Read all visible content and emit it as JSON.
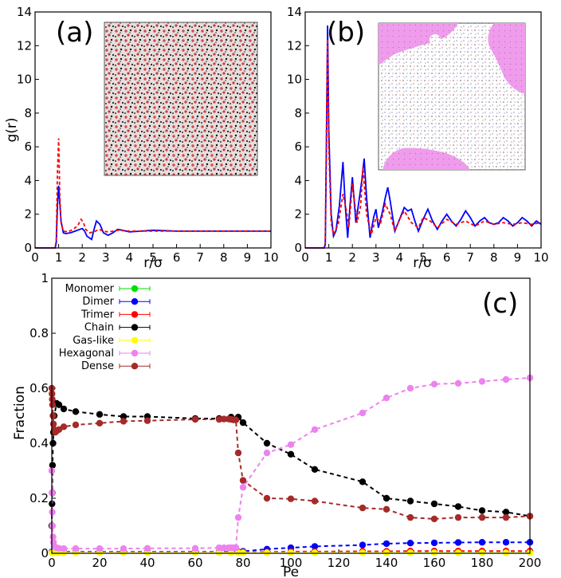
{
  "chart_data": [
    {
      "type": "line",
      "panel_label": "(a)",
      "xlabel": "r/σ",
      "ylabel": "g(r)",
      "xlim": [
        0,
        10
      ],
      "ylim": [
        0,
        14
      ],
      "xticks": [
        0,
        1,
        2,
        3,
        4,
        5,
        6,
        7,
        8,
        9,
        10
      ],
      "yticks": [
        0,
        2,
        4,
        6,
        8,
        10,
        12,
        14
      ],
      "inset": "snapshot-mixed-red-black",
      "series": [
        {
          "color": "#0000ff",
          "style": "solid",
          "x": [
            0,
            0.85,
            0.9,
            0.95,
            1.0,
            1.05,
            1.1,
            1.2,
            1.3,
            1.5,
            1.7,
            1.9,
            2.0,
            2.1,
            2.2,
            2.4,
            2.5,
            2.6,
            2.75,
            2.9,
            3.1,
            3.3,
            3.5,
            3.7,
            4.0,
            4.5,
            5.0,
            6.0,
            7.0,
            8.0,
            9.0,
            10.0
          ],
          "y": [
            0,
            0,
            0.3,
            2.5,
            3.7,
            2.6,
            1.6,
            0.9,
            0.85,
            0.9,
            1.0,
            1.1,
            1.15,
            1.0,
            0.7,
            0.5,
            1.1,
            1.6,
            1.4,
            0.9,
            0.75,
            0.9,
            1.1,
            1.05,
            0.95,
            1.0,
            1.05,
            1.0,
            1.0,
            1.0,
            1.0,
            1.0
          ]
        },
        {
          "color": "#ff0000",
          "style": "dashed",
          "x": [
            0,
            0.85,
            0.9,
            0.95,
            1.0,
            1.05,
            1.1,
            1.2,
            1.4,
            1.6,
            1.8,
            1.95,
            2.05,
            2.15,
            2.3,
            2.5,
            2.7,
            2.9,
            3.1,
            3.3,
            3.5,
            4.0,
            4.5,
            5.0,
            6.0,
            7.0,
            8.0,
            9.0,
            10.0
          ],
          "y": [
            0,
            0,
            0.5,
            4.5,
            6.5,
            3.0,
            1.5,
            1.0,
            0.95,
            1.1,
            1.3,
            1.7,
            1.5,
            1.1,
            0.9,
            0.95,
            1.1,
            1.0,
            0.95,
            1.0,
            1.05,
            1.0,
            1.0,
            1.0,
            1.0,
            1.0,
            1.0,
            1.0,
            1.0
          ]
        }
      ]
    },
    {
      "type": "line",
      "panel_label": "(b)",
      "xlabel": "r/σ",
      "xlim": [
        0,
        10
      ],
      "ylim": [
        0,
        14
      ],
      "xticks": [
        0,
        1,
        2,
        3,
        4,
        5,
        6,
        7,
        8,
        9,
        10
      ],
      "yticks": [
        0,
        2,
        4,
        6,
        8,
        10,
        12,
        14
      ],
      "inset": "snapshot-hexagonal-clusters",
      "series": [
        {
          "color": "#0000ff",
          "style": "solid",
          "x": [
            0,
            0.8,
            0.85,
            0.9,
            0.95,
            1.0,
            1.1,
            1.2,
            1.3,
            1.45,
            1.6,
            1.7,
            1.8,
            1.9,
            2.0,
            2.15,
            2.3,
            2.4,
            2.5,
            2.6,
            2.75,
            2.9,
            3.0,
            3.1,
            3.25,
            3.4,
            3.5,
            3.6,
            3.8,
            4.0,
            4.2,
            4.35,
            4.5,
            4.65,
            4.8,
            5.0,
            5.2,
            5.4,
            5.6,
            5.8,
            6.0,
            6.2,
            6.4,
            6.6,
            6.8,
            7.0,
            7.2,
            7.4,
            7.6,
            7.8,
            8.0,
            8.2,
            8.4,
            8.6,
            8.8,
            9.0,
            9.2,
            9.4,
            9.6,
            9.8,
            10.0
          ],
          "y": [
            0,
            0,
            0.2,
            6.0,
            13.2,
            7.0,
            2.0,
            0.7,
            1.0,
            2.5,
            5.1,
            2.5,
            0.6,
            2.5,
            4.2,
            1.5,
            3.0,
            4.0,
            5.3,
            3.0,
            0.6,
            1.8,
            2.3,
            1.2,
            2.0,
            3.0,
            3.6,
            2.8,
            1.0,
            1.7,
            2.4,
            2.2,
            2.3,
            1.6,
            1.0,
            1.7,
            2.3,
            1.6,
            1.1,
            1.6,
            2.0,
            1.6,
            1.3,
            1.7,
            2.2,
            1.8,
            1.3,
            1.6,
            1.8,
            1.5,
            1.4,
            1.5,
            1.8,
            1.6,
            1.3,
            1.5,
            1.8,
            1.6,
            1.3,
            1.6,
            1.4
          ]
        },
        {
          "color": "#ff0000",
          "style": "dashed",
          "x": [
            0,
            0.8,
            0.85,
            0.9,
            0.95,
            1.0,
            1.1,
            1.2,
            1.4,
            1.6,
            1.75,
            1.85,
            2.0,
            2.2,
            2.35,
            2.45,
            2.6,
            2.8,
            3.0,
            3.2,
            3.4,
            3.6,
            3.8,
            4.0,
            4.2,
            4.5,
            4.8,
            5.0,
            5.3,
            5.6,
            6.0,
            6.4,
            6.8,
            7.2,
            7.6,
            8.0,
            8.4,
            8.8,
            9.2,
            9.6,
            10.0
          ],
          "y": [
            0,
            0,
            0.3,
            7.0,
            12.4,
            6.0,
            1.5,
            0.8,
            1.4,
            3.2,
            2.2,
            1.2,
            3.8,
            1.5,
            2.5,
            4.8,
            2.0,
            0.8,
            1.8,
            1.5,
            2.6,
            2.0,
            1.0,
            1.7,
            2.2,
            1.5,
            1.2,
            1.8,
            1.6,
            1.2,
            1.7,
            1.4,
            1.6,
            1.3,
            1.6,
            1.4,
            1.5,
            1.4,
            1.5,
            1.4,
            1.5
          ]
        }
      ]
    },
    {
      "type": "line",
      "panel_label": "(c)",
      "xlabel": "Pe",
      "ylabel": "Fraction",
      "xlim": [
        0,
        200
      ],
      "ylim": [
        0,
        1
      ],
      "xticks": [
        0,
        20,
        40,
        60,
        80,
        100,
        120,
        140,
        160,
        180,
        200
      ],
      "yticks": [
        0,
        0.2,
        0.4,
        0.6,
        0.8,
        1
      ],
      "ytick_labels": [
        "0",
        "0.2",
        "0.4",
        "0.6",
        "0.8",
        "1"
      ],
      "legend_position": "top-left",
      "series": [
        {
          "name": "Monomer",
          "color": "#00e000",
          "x": [
            0,
            0.5,
            1,
            2,
            3,
            5,
            10,
            20,
            30,
            40,
            60,
            70,
            75,
            78,
            80,
            90,
            100,
            110,
            130,
            140,
            150,
            160,
            170,
            180,
            190,
            200
          ],
          "y": [
            0.003,
            0.003,
            0.003,
            0.003,
            0.003,
            0.003,
            0.003,
            0.003,
            0.003,
            0.003,
            0.003,
            0.003,
            0.003,
            0.003,
            0.003,
            0.003,
            0.003,
            0.003,
            0.003,
            0.003,
            0.003,
            0.003,
            0.003,
            0.003,
            0.003,
            0.003
          ]
        },
        {
          "name": "Dimer",
          "color": "#0000ff",
          "x": [
            0,
            0.5,
            1,
            2,
            3,
            5,
            10,
            20,
            30,
            40,
            60,
            70,
            75,
            78,
            80,
            90,
            100,
            110,
            130,
            140,
            150,
            160,
            170,
            180,
            190,
            200
          ],
          "y": [
            0.005,
            0.005,
            0.005,
            0.005,
            0.005,
            0.005,
            0.005,
            0.005,
            0.005,
            0.005,
            0.005,
            0.005,
            0.005,
            0.005,
            0.007,
            0.015,
            0.02,
            0.025,
            0.03,
            0.035,
            0.037,
            0.038,
            0.039,
            0.04,
            0.04,
            0.04
          ]
        },
        {
          "name": "Trimer",
          "color": "#ff0000",
          "x": [
            0,
            0.5,
            1,
            2,
            3,
            5,
            10,
            20,
            30,
            40,
            60,
            70,
            75,
            78,
            80,
            90,
            100,
            110,
            130,
            140,
            150,
            160,
            170,
            180,
            190,
            200
          ],
          "y": [
            0.003,
            0.003,
            0.003,
            0.003,
            0.003,
            0.003,
            0.003,
            0.003,
            0.003,
            0.003,
            0.003,
            0.003,
            0.003,
            0.003,
            0.004,
            0.005,
            0.006,
            0.006,
            0.007,
            0.007,
            0.008,
            0.008,
            0.008,
            0.008,
            0.008,
            0.008
          ]
        },
        {
          "name": "Chain",
          "color": "#000000",
          "x": [
            0,
            0.1,
            0.2,
            0.3,
            0.5,
            0.7,
            1,
            2,
            3,
            5,
            10,
            20,
            30,
            40,
            60,
            70,
            75,
            78,
            80,
            90,
            100,
            110,
            130,
            140,
            150,
            160,
            170,
            180,
            190,
            200
          ],
          "y": [
            0.1,
            0.18,
            0.22,
            0.32,
            0.4,
            0.44,
            0.5,
            0.545,
            0.54,
            0.525,
            0.515,
            0.505,
            0.497,
            0.497,
            0.49,
            0.49,
            0.495,
            0.495,
            0.475,
            0.4,
            0.36,
            0.305,
            0.26,
            0.2,
            0.19,
            0.18,
            0.17,
            0.155,
            0.15,
            0.135
          ]
        },
        {
          "name": "Gas-like",
          "color": "#ffff00",
          "x": [
            0,
            0.5,
            1,
            2,
            3,
            5,
            10,
            20,
            30,
            40,
            60,
            70,
            75,
            78,
            80,
            90,
            100,
            110,
            130,
            140,
            150,
            160,
            170,
            180,
            190,
            200
          ],
          "y": [
            0.002,
            0.002,
            0.002,
            0.002,
            0.002,
            0.002,
            0.002,
            0.002,
            0.002,
            0.002,
            0.002,
            0.002,
            0.002,
            0.002,
            0.002,
            0.002,
            0.002,
            0.002,
            0.002,
            0.002,
            0.002,
            0.002,
            0.002,
            0.002,
            0.002,
            0.002
          ]
        },
        {
          "name": "Hexagonal",
          "color": "#ee82ee",
          "x": [
            0,
            0.1,
            0.2,
            0.3,
            0.5,
            0.7,
            1,
            2,
            3,
            5,
            10,
            20,
            30,
            40,
            60,
            70,
            72,
            74,
            75,
            76,
            77,
            78,
            80,
            90,
            100,
            110,
            130,
            140,
            150,
            160,
            170,
            180,
            190,
            200
          ],
          "y": [
            0.3,
            0.22,
            0.15,
            0.1,
            0.06,
            0.04,
            0.025,
            0.02,
            0.018,
            0.017,
            0.017,
            0.017,
            0.017,
            0.018,
            0.018,
            0.02,
            0.02,
            0.02,
            0.02,
            0.02,
            0.02,
            0.13,
            0.24,
            0.365,
            0.395,
            0.45,
            0.51,
            0.565,
            0.6,
            0.615,
            0.618,
            0.625,
            0.632,
            0.638
          ]
        },
        {
          "name": "Dense",
          "color": "#a52a2a",
          "x": [
            0,
            0.1,
            0.2,
            0.3,
            0.5,
            0.7,
            1,
            1.5,
            2,
            3,
            5,
            10,
            20,
            30,
            40,
            60,
            70,
            72,
            74,
            75,
            76,
            77,
            78,
            80,
            90,
            100,
            110,
            130,
            140,
            150,
            160,
            170,
            180,
            190,
            200
          ],
          "y": [
            0.6,
            0.58,
            0.56,
            0.54,
            0.5,
            0.47,
            0.45,
            0.44,
            0.445,
            0.45,
            0.46,
            0.467,
            0.473,
            0.48,
            0.482,
            0.487,
            0.487,
            0.488,
            0.488,
            0.487,
            0.485,
            0.485,
            0.365,
            0.265,
            0.2,
            0.198,
            0.19,
            0.165,
            0.16,
            0.13,
            0.125,
            0.13,
            0.13,
            0.13,
            0.135
          ]
        }
      ]
    }
  ]
}
